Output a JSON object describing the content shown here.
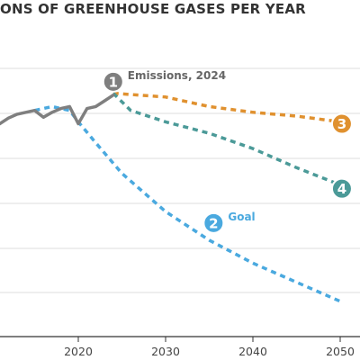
{
  "chart_data": {
    "type": "line",
    "title": "ONS OF GREENHOUSE GASES PER YEAR",
    "x_ticks": [
      "2020",
      "2030",
      "2040",
      "2050"
    ],
    "xlim": [
      2010,
      2050
    ],
    "ylim": [
      0,
      7
    ],
    "grid": true,
    "colors": {
      "historical": "#7f7f7f",
      "goal": "#4aa9df",
      "orange": "#e0912f",
      "teal": "#4b9a98",
      "grid": "#dddddd",
      "axis": "#333333"
    },
    "series": [
      {
        "id": "historical",
        "style": "solid",
        "points": [
          [
            2010,
            5.4
          ],
          [
            2011,
            5.55
          ],
          [
            2012,
            5.7
          ],
          [
            2013,
            5.8
          ],
          [
            2014,
            5.85
          ],
          [
            2015,
            5.9
          ],
          [
            2016,
            5.72
          ],
          [
            2017,
            5.85
          ],
          [
            2018,
            5.95
          ],
          [
            2019,
            6.0
          ],
          [
            2020,
            5.55
          ],
          [
            2021,
            5.95
          ],
          [
            2022,
            6.0
          ],
          [
            2023,
            6.15
          ],
          [
            2024,
            6.3
          ]
        ]
      },
      {
        "id": "goal",
        "style": "dotted",
        "points": [
          [
            2015,
            5.9
          ],
          [
            2017,
            6.0
          ],
          [
            2019,
            5.9
          ],
          [
            2020,
            5.6
          ],
          [
            2022,
            5.05
          ],
          [
            2025,
            4.25
          ],
          [
            2030,
            3.25
          ],
          [
            2035,
            2.5
          ],
          [
            2040,
            1.9
          ],
          [
            2045,
            1.4
          ],
          [
            2050,
            0.9
          ]
        ]
      },
      {
        "id": "orange",
        "style": "dotted",
        "points": [
          [
            2024,
            6.35
          ],
          [
            2027,
            6.3
          ],
          [
            2030,
            6.25
          ],
          [
            2035,
            6.0
          ],
          [
            2040,
            5.85
          ],
          [
            2045,
            5.75
          ],
          [
            2050,
            5.6
          ]
        ]
      },
      {
        "id": "teal",
        "style": "dotted",
        "points": [
          [
            2024,
            6.35
          ],
          [
            2026,
            5.9
          ],
          [
            2030,
            5.6
          ],
          [
            2035,
            5.3
          ],
          [
            2040,
            4.9
          ],
          [
            2045,
            4.4
          ],
          [
            2050,
            3.95
          ]
        ]
      }
    ],
    "markers": [
      {
        "num": "1",
        "x": 2024,
        "y": 6.65,
        "color": "#7f7f7f",
        "label": "Emissions, 2024",
        "label_color": "#666666"
      },
      {
        "num": "2",
        "x": 2035.5,
        "y": 2.95,
        "color": "#4aa9df",
        "label": "Goal",
        "label_color": "#4aa9df"
      },
      {
        "num": "3",
        "x": 2050.2,
        "y": 5.55,
        "color": "#e0912f",
        "label": "",
        "label_color": "#e0912f"
      },
      {
        "num": "4",
        "x": 2050.2,
        "y": 3.85,
        "color": "#4b9a98",
        "label": "",
        "label_color": "#4b9a98"
      }
    ]
  }
}
